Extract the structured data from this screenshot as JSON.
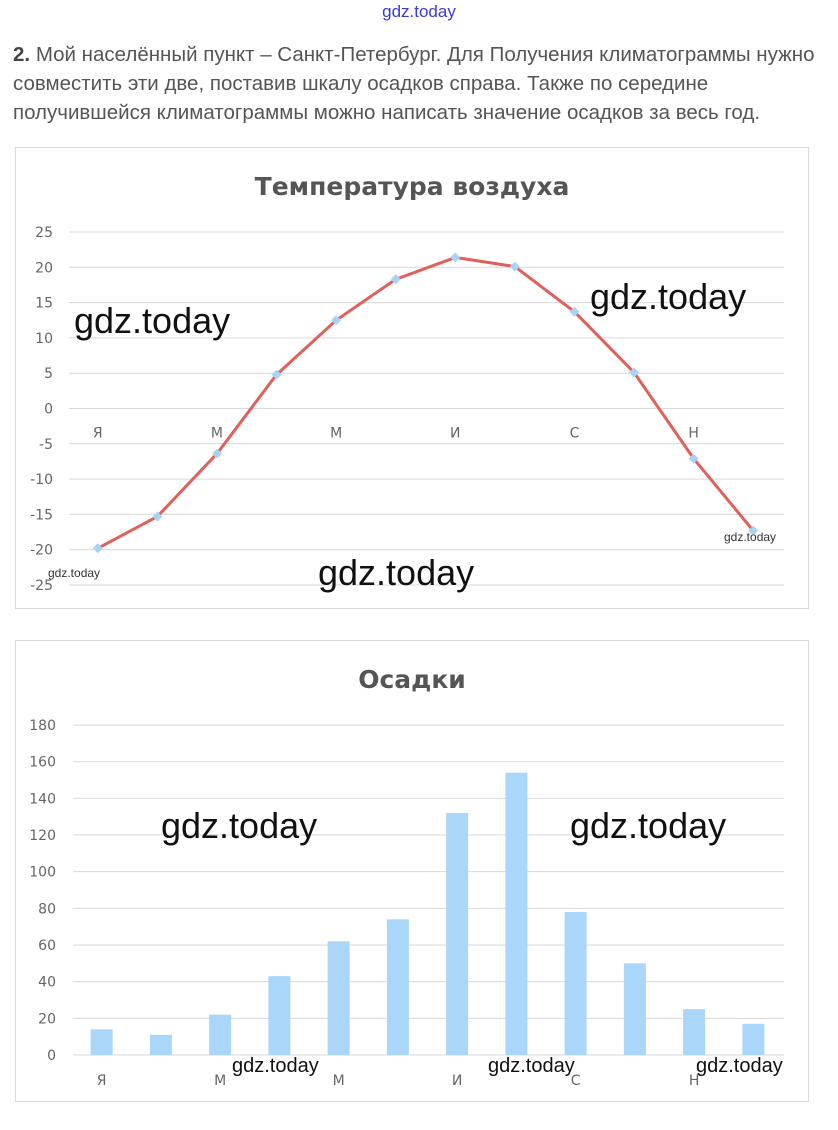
{
  "header": {
    "watermark": "gdz.today"
  },
  "task": {
    "number": "2.",
    "text": "Мой населённый пункт – Санкт-Петербург. Для Получения климатограммы нужно совместить эти две, поставив шкалу осадков справа. Также по середине получившейся климатограммы можно написать значение осадков за весь год."
  },
  "watermarks": {
    "text": "gdz.today"
  },
  "chart_data": [
    {
      "type": "line",
      "title": "Температура воздуха",
      "categories": [
        "Я",
        "",
        "М",
        "",
        "М",
        "",
        "И",
        "",
        "С",
        "",
        "Н",
        ""
      ],
      "series": [
        {
          "name": "Температура",
          "values": [
            -19.8,
            -15.3,
            -6.4,
            4.8,
            12.5,
            18.3,
            21.4,
            20.1,
            13.7,
            5.1,
            -7.1,
            -17.3
          ]
        }
      ],
      "yticks": [
        "25",
        "20",
        "15",
        "10",
        "5",
        "0",
        "-5",
        "-10",
        "-15",
        "-20",
        "-25"
      ],
      "ylim": [
        -25,
        25
      ],
      "grid": true,
      "colors": {
        "line": "#e0605a",
        "marker": "#a9d3f5"
      }
    },
    {
      "type": "bar",
      "title": "Осадки",
      "categories": [
        "Я",
        "",
        "М",
        "",
        "М",
        "",
        "И",
        "",
        "С",
        "",
        "Н",
        ""
      ],
      "series": [
        {
          "name": "Осадки",
          "values": [
            14,
            11,
            22,
            43,
            62,
            74,
            132,
            154,
            78,
            50,
            25,
            17
          ]
        }
      ],
      "yticks": [
        "180",
        "160",
        "140",
        "120",
        "100",
        "80",
        "60",
        "40",
        "20",
        "0"
      ],
      "ylim": [
        0,
        180
      ],
      "grid": true,
      "colors": {
        "bar": "#a9d6f9"
      }
    }
  ]
}
